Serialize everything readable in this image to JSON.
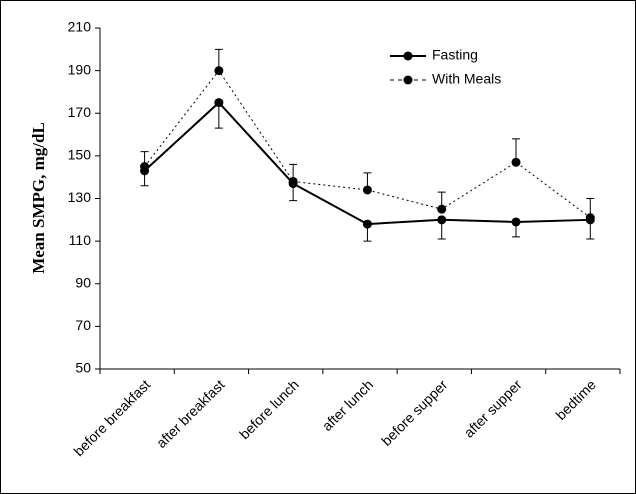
{
  "chart_data": {
    "type": "line",
    "ylabel": "Mean SMPG, mg/dL",
    "categories": [
      "before breakfast",
      "after breakfast",
      "before lunch",
      "after lunch",
      "before supper",
      "after supper",
      "bedtime"
    ],
    "series": [
      {
        "name": "Fasting",
        "color": "#000000",
        "line_style": "solid",
        "error_side": "down",
        "values": [
          143,
          175,
          137,
          118,
          120,
          119,
          120
        ],
        "errors": [
          7,
          12,
          8,
          8,
          9,
          7,
          9
        ]
      },
      {
        "name": "With Meals",
        "color": "#000000",
        "line_style": "dotted",
        "error_side": "up",
        "values": [
          145,
          190,
          138,
          134,
          125,
          147,
          121
        ],
        "errors": [
          7,
          10,
          8,
          8,
          8,
          11,
          9
        ]
      }
    ],
    "ylim": [
      50,
      210
    ],
    "yticks": [
      50,
      70,
      90,
      110,
      130,
      150,
      170,
      190,
      210
    ],
    "legend": "top-right"
  }
}
